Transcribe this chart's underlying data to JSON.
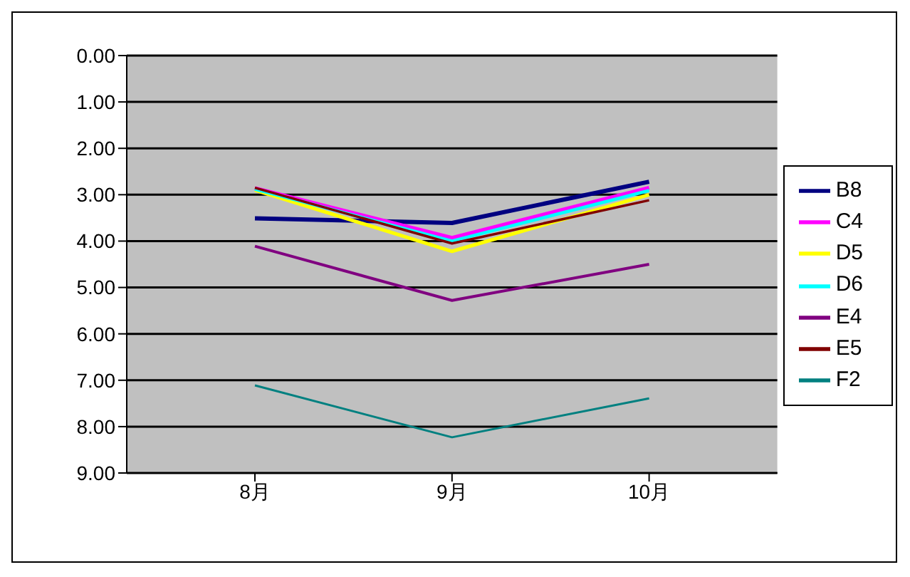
{
  "chart_data": {
    "type": "line",
    "categories": [
      "8月",
      "9月",
      "10月"
    ],
    "series": [
      {
        "name": "B8",
        "color": "#000080",
        "values": [
          3.51,
          3.61,
          2.72
        ]
      },
      {
        "name": "C4",
        "color": "#ff00ff",
        "values": [
          2.86,
          3.93,
          2.85
        ]
      },
      {
        "name": "D5",
        "color": "#ffff00",
        "values": [
          2.9,
          4.22,
          3.0
        ]
      },
      {
        "name": "D6",
        "color": "#00ffff",
        "values": [
          2.88,
          4.0,
          2.91
        ]
      },
      {
        "name": "E4",
        "color": "#800080",
        "values": [
          4.11,
          5.28,
          4.5
        ]
      },
      {
        "name": "E5",
        "color": "#800000",
        "values": [
          2.85,
          4.05,
          3.12
        ]
      },
      {
        "name": "F2",
        "color": "#008080",
        "values": [
          7.11,
          8.23,
          7.39
        ]
      }
    ],
    "ylim": [
      9,
      0
    ],
    "yticks": [
      {
        "value": 0,
        "label": "0.00"
      },
      {
        "value": 1,
        "label": "1.00"
      },
      {
        "value": 2,
        "label": "2.00"
      },
      {
        "value": 3,
        "label": "3.00"
      },
      {
        "value": 4,
        "label": "4.00"
      },
      {
        "value": 5,
        "label": "5.00"
      },
      {
        "value": 6,
        "label": "6.00"
      },
      {
        "value": 7,
        "label": "7.00"
      },
      {
        "value": 8,
        "label": "8.00"
      },
      {
        "value": 9,
        "label": "9.00"
      }
    ],
    "grid": "y",
    "legend": "right",
    "marker": "none",
    "line_style": "solid"
  }
}
